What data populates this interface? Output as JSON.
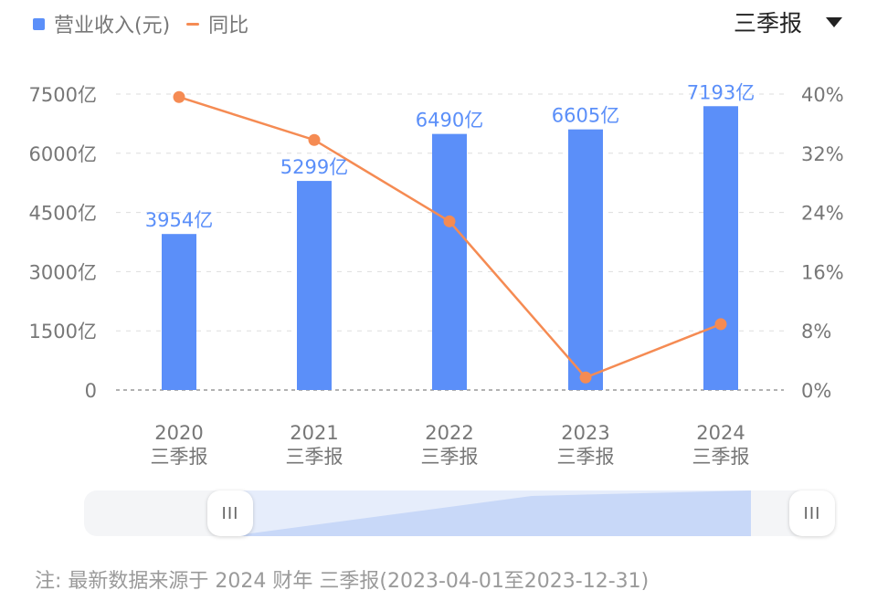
{
  "legend": {
    "revenue_label": "营业收入(元)",
    "yoy_label": "同比"
  },
  "period_select": {
    "value": "三季报"
  },
  "slider": {
    "handle_left": "III",
    "handle_right": "III"
  },
  "footnote": "注: 最新数据来源于 2024 财年 三季报(2023-04-01至2023-12-31)",
  "colors": {
    "bar": "#5b8ff9",
    "line": "#f58b53",
    "grid": "#dddddd"
  },
  "chart_data": {
    "type": "bar",
    "categories": [
      "2020",
      "2021",
      "2022",
      "2023",
      "2024"
    ],
    "category_sublabel": "三季报",
    "series": [
      {
        "name": "营业收入(元)",
        "type": "bar",
        "axis": "left",
        "values": [
          3954,
          5299,
          6490,
          6605,
          7193
        ],
        "labels": [
          "3954亿",
          "5299亿",
          "6490亿",
          "6605亿",
          "7193亿"
        ]
      },
      {
        "name": "同比",
        "type": "line",
        "axis": "right",
        "values": [
          39.6,
          33.8,
          22.8,
          1.7,
          8.9
        ]
      }
    ],
    "y_left": {
      "ylim": [
        0,
        7500
      ],
      "ticks": [
        0,
        1500,
        3000,
        4500,
        6000,
        7500
      ],
      "tick_labels": [
        "0",
        "1500亿",
        "3000亿",
        "4500亿",
        "6000亿",
        "7500亿"
      ]
    },
    "y_right": {
      "ylim": [
        0,
        40
      ],
      "ticks": [
        0,
        8,
        16,
        24,
        32,
        40
      ],
      "tick_labels": [
        "0%",
        "8%",
        "16%",
        "24%",
        "32%",
        "40%"
      ]
    },
    "grid": true,
    "legend_position": "top-left"
  }
}
